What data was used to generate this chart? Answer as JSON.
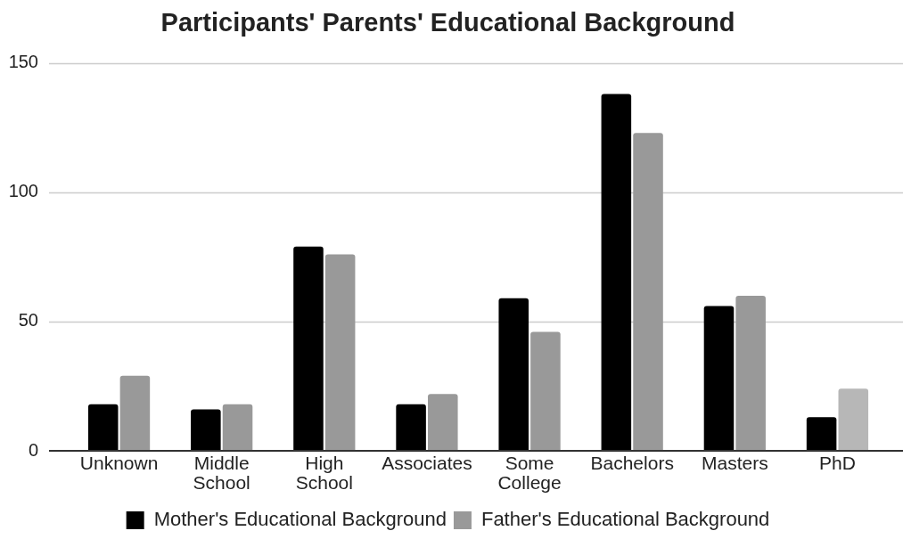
{
  "chart_data": {
    "type": "bar",
    "title": "Participants' Parents' Educational Background",
    "categories": [
      "Unknown",
      "Middle School",
      "High School",
      "Associates",
      "Some College",
      "Bachelors",
      "Masters",
      "PhD"
    ],
    "series": [
      {
        "name": "Mother's Educational Background",
        "color": "#000000",
        "values": [
          18,
          16,
          79,
          18,
          59,
          138,
          56,
          13
        ]
      },
      {
        "name": "Father's Educational Background",
        "color": "#999999",
        "colors": [
          "#999999",
          "#999999",
          "#999999",
          "#999999",
          "#999999",
          "#999999",
          "#999999",
          "#b7b7b7"
        ],
        "values": [
          29,
          18,
          76,
          22,
          46,
          123,
          60,
          24
        ]
      }
    ],
    "ylim": [
      0,
      150
    ],
    "yticks": [
      0,
      50,
      100,
      150
    ],
    "grid": "y",
    "legend": "bottom"
  }
}
